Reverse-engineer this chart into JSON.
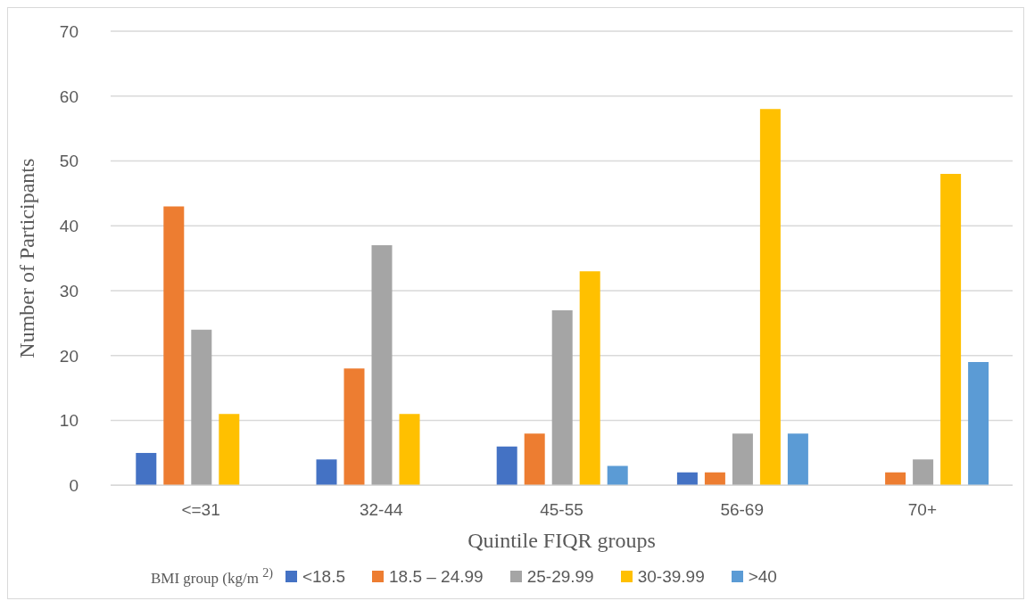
{
  "chart_data": {
    "type": "bar",
    "xlabel": "Quintile FIQR groups",
    "ylabel": "Number of Participants",
    "legend_title": "BMI group (kg/m $^{2)}$",
    "categories": [
      "<=31",
      "32-44",
      "45-55",
      "56-69",
      "70+"
    ],
    "series": [
      {
        "name": "<18.5",
        "color": "#4472c4",
        "values": [
          5,
          4,
          6,
          2,
          0
        ]
      },
      {
        "name": "18.5 – 24.99",
        "color": "#ed7d31",
        "values": [
          43,
          18,
          8,
          2,
          2
        ]
      },
      {
        "name": "25-29.99",
        "color": "#a5a5a5",
        "values": [
          24,
          37,
          27,
          8,
          4
        ]
      },
      {
        "name": "30-39.99",
        "color": "#ffc000",
        "values": [
          11,
          11,
          33,
          58,
          48
        ]
      },
      {
        "name": ">40",
        "color": "#5b9bd5",
        "values": [
          0,
          0,
          3,
          8,
          19
        ]
      }
    ],
    "ylim": [
      0,
      70
    ],
    "yticks": [
      0,
      10,
      20,
      30,
      40,
      50,
      60,
      70
    ],
    "grid": "y",
    "legend": "bottom"
  }
}
